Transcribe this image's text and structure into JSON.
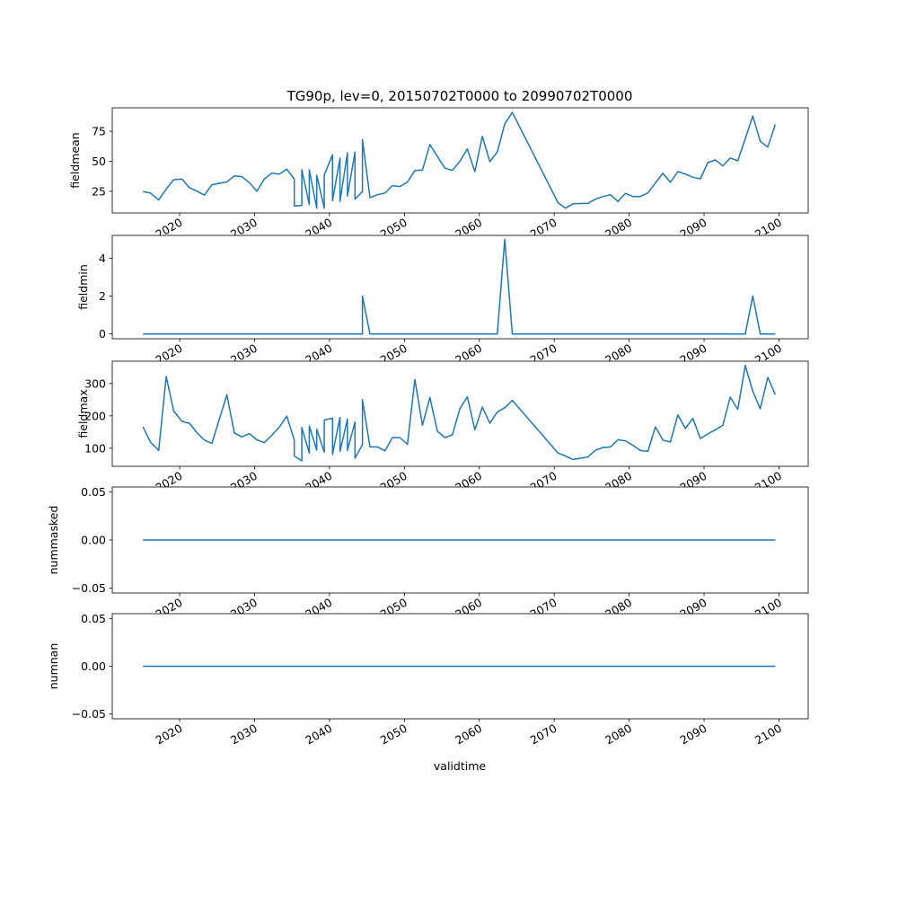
{
  "chart_data": {
    "type": "line",
    "title": "TG90p, lev=0, 20150702T0000 to 20990702T0000",
    "xlabel": "validtime",
    "xlim": [
      2011.0,
      2103.9
    ],
    "xticks": [
      2020,
      2030,
      2040,
      2050,
      2060,
      2070,
      2080,
      2090,
      2100
    ],
    "xtick_labels": [
      "2020",
      "2030",
      "2040",
      "2050",
      "2060",
      "2070",
      "2080",
      "2090",
      "2100"
    ],
    "line_color": "#1f77b4",
    "x": [
      2015.1,
      2016.1,
      2017.2,
      2018.2,
      2019.2,
      2020.3,
      2021.3,
      2022.3,
      2023.3,
      2024.3,
      2025.3,
      2026.3,
      2027.3,
      2028.3,
      2029.3,
      2030.3,
      2031.3,
      2032.3,
      2033.3,
      2034.3,
      2035.3,
      2035.3,
      2036.3,
      2036.3,
      2037.3,
      2037.3,
      2038.3,
      2038.3,
      2039.3,
      2039.3,
      2040.4,
      2040.4,
      2041.4,
      2041.4,
      2042.4,
      2042.4,
      2043.4,
      2043.4,
      2044.4,
      2044.4,
      2045.4,
      2046.4,
      2047.4,
      2048.4,
      2049.4,
      2050.4,
      2051.4,
      2052.4,
      2053.4,
      2054.4,
      2055.4,
      2056.4,
      2057.4,
      2058.4,
      2059.4,
      2060.4,
      2061.4,
      2062.4,
      2063.4,
      2064.4,
      2070.5,
      2071.5,
      2072.5,
      2074.5,
      2075.5,
      2076.5,
      2077.5,
      2078.5,
      2079.5,
      2080.5,
      2081.5,
      2082.5,
      2083.5,
      2084.5,
      2085.5,
      2086.5,
      2087.5,
      2088.5,
      2089.5,
      2090.5,
      2091.5,
      2092.5,
      2093.5,
      2094.5,
      2095.5,
      2096.5,
      2097.5,
      2098.5,
      2099.5
    ],
    "panels": [
      {
        "ylabel": "fieldmean",
        "ylim": [
          7,
          94.5
        ],
        "yticks": [
          25,
          50,
          75
        ],
        "ytick_labels": [
          "25",
          "50",
          "75"
        ],
        "values": [
          24.8,
          23.5,
          17.8,
          27,
          34.7,
          35.2,
          28,
          25.2,
          21.8,
          30.5,
          31.7,
          32.7,
          37.9,
          37.2,
          32.2,
          25,
          35.2,
          40.2,
          39.2,
          43.4,
          35.2,
          12.8,
          13.3,
          42.9,
          14,
          42.9,
          11,
          38.4,
          11,
          38.8,
          55.4,
          17.3,
          52.6,
          16.6,
          57.1,
          21,
          57.6,
          18.5,
          24.8,
          68,
          19.8,
          22.2,
          23.5,
          29.7,
          29,
          32.7,
          42.4,
          42.7,
          64,
          54,
          44.4,
          42.4,
          50,
          60.3,
          41.4,
          70.7,
          49.6,
          57.8,
          81.2,
          90.7,
          15.5,
          11,
          14.6,
          15,
          18.5,
          20.7,
          22.2,
          16.6,
          23.3,
          20.7,
          20.7,
          23.7,
          32,
          40,
          32.5,
          41.4,
          39.4,
          36.7,
          35.4,
          48.9,
          51.1,
          46.1,
          52.8,
          50.4,
          68.8,
          87.7,
          66.6,
          61.8,
          80.7
        ]
      },
      {
        "ylabel": "fieldmin",
        "ylim": [
          -0.25,
          5.2
        ],
        "yticks": [
          0,
          2,
          4
        ],
        "ytick_labels": [
          "0",
          "2",
          "4"
        ],
        "values": [
          0,
          0,
          0,
          0,
          0,
          0,
          0,
          0,
          0,
          0,
          0,
          0,
          0,
          0,
          0,
          0,
          0,
          0,
          0,
          0,
          0,
          0,
          0,
          0,
          0,
          0,
          0,
          0,
          0,
          0,
          0,
          0,
          0,
          0,
          0,
          0,
          0,
          0,
          0,
          2,
          0,
          0,
          0,
          0,
          0,
          0,
          0,
          0,
          0,
          0,
          0,
          0,
          0,
          0,
          0,
          0,
          0,
          0,
          5,
          0,
          0,
          0,
          0,
          0,
          0,
          0,
          0,
          0,
          0,
          0,
          0,
          0,
          0,
          0,
          0,
          0,
          0,
          0,
          0,
          0,
          0,
          0,
          0,
          0,
          0,
          2,
          0,
          0,
          0
        ]
      },
      {
        "ylabel": "fieldmax",
        "ylim": [
          44,
          369
        ],
        "yticks": [
          100,
          200,
          300
        ],
        "ytick_labels": [
          "100",
          "200",
          "300"
        ],
        "values": [
          166,
          119,
          93,
          322,
          215,
          183,
          177,
          148,
          125,
          115,
          190,
          265,
          147,
          135,
          145,
          126,
          117,
          140,
          165,
          199,
          125,
          76,
          61,
          164,
          85,
          169,
          94,
          159,
          88,
          187,
          193,
          81,
          195,
          90,
          190,
          93,
          181,
          69,
          111,
          250,
          104,
          104,
          92,
          133,
          133,
          112,
          312,
          171,
          257,
          152,
          133,
          141,
          222,
          259,
          157,
          227,
          177,
          212,
          225,
          248,
          85,
          76,
          65,
          73,
          94,
          102,
          104,
          126,
          123,
          109,
          93,
          90,
          166,
          125,
          119,
          203,
          161,
          192,
          130,
          144,
          157,
          171,
          258,
          220,
          356,
          276,
          222,
          319,
          266
        ]
      },
      {
        "ylabel": "nummasked",
        "ylim": [
          -0.055,
          0.055
        ],
        "yticks": [
          -0.05,
          0,
          0.05
        ],
        "ytick_labels": [
          "−0.05",
          "0.00",
          "0.05"
        ],
        "values": [
          0,
          0,
          0,
          0,
          0,
          0,
          0,
          0,
          0,
          0,
          0,
          0,
          0,
          0,
          0,
          0,
          0,
          0,
          0,
          0,
          0,
          0,
          0,
          0,
          0,
          0,
          0,
          0,
          0,
          0,
          0,
          0,
          0,
          0,
          0,
          0,
          0,
          0,
          0,
          0,
          0,
          0,
          0,
          0,
          0,
          0,
          0,
          0,
          0,
          0,
          0,
          0,
          0,
          0,
          0,
          0,
          0,
          0,
          0,
          0,
          0,
          0,
          0,
          0,
          0,
          0,
          0,
          0,
          0,
          0,
          0,
          0,
          0,
          0,
          0,
          0,
          0,
          0,
          0,
          0,
          0,
          0,
          0,
          0,
          0,
          0,
          0,
          0,
          0
        ]
      },
      {
        "ylabel": "numnan",
        "ylim": [
          -0.055,
          0.055
        ],
        "yticks": [
          -0.05,
          0,
          0.05
        ],
        "ytick_labels": [
          "−0.05",
          "0.00",
          "0.05"
        ],
        "values": [
          0,
          0,
          0,
          0,
          0,
          0,
          0,
          0,
          0,
          0,
          0,
          0,
          0,
          0,
          0,
          0,
          0,
          0,
          0,
          0,
          0,
          0,
          0,
          0,
          0,
          0,
          0,
          0,
          0,
          0,
          0,
          0,
          0,
          0,
          0,
          0,
          0,
          0,
          0,
          0,
          0,
          0,
          0,
          0,
          0,
          0,
          0,
          0,
          0,
          0,
          0,
          0,
          0,
          0,
          0,
          0,
          0,
          0,
          0,
          0,
          0,
          0,
          0,
          0,
          0,
          0,
          0,
          0,
          0,
          0,
          0,
          0,
          0,
          0,
          0,
          0,
          0,
          0,
          0,
          0,
          0,
          0,
          0,
          0,
          0,
          0,
          0,
          0,
          0
        ]
      }
    ]
  }
}
